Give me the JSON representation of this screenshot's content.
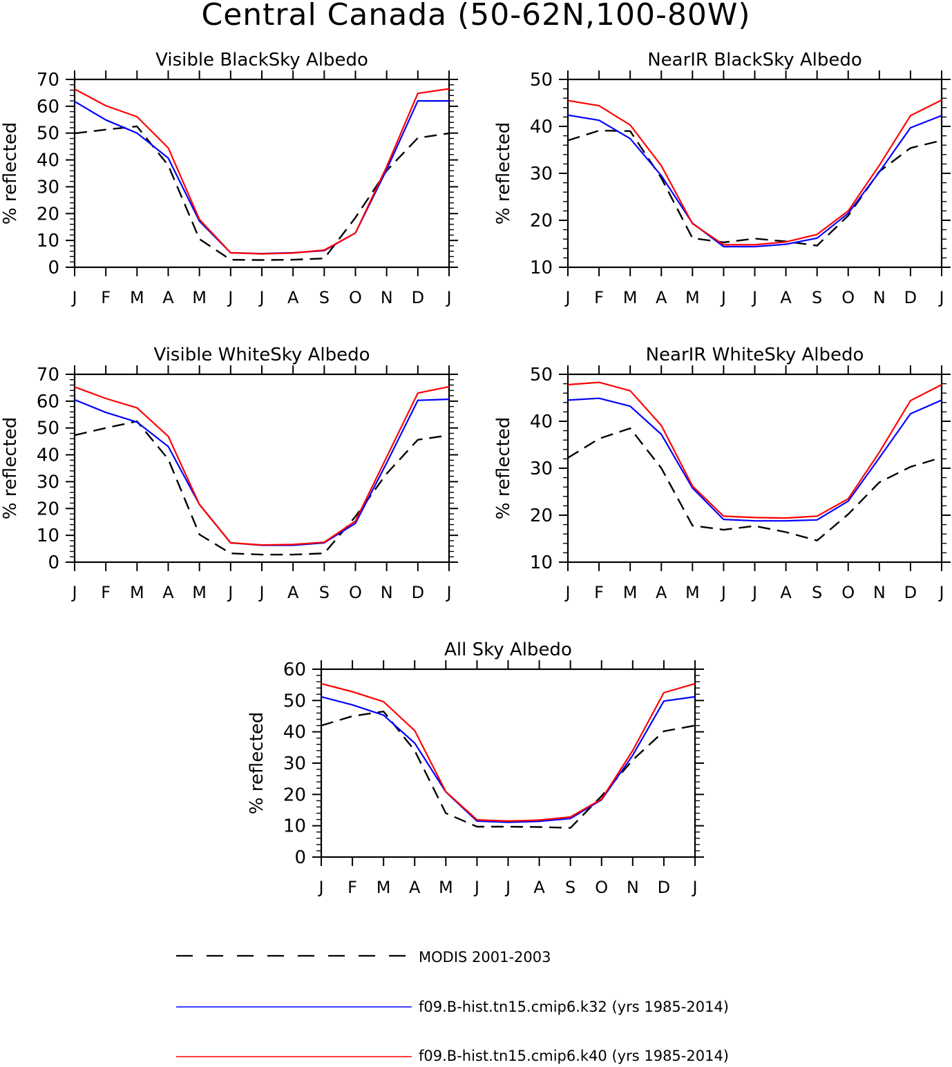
{
  "figure": {
    "title": "Central Canada (50-62N,100-80W)"
  },
  "chart_data": [
    {
      "type": "line",
      "title": "Visible BlackSky Albedo",
      "ylabel": "% reflected",
      "xlabel": "",
      "x": [
        "J",
        "F",
        "M",
        "A",
        "M",
        "J",
        "J",
        "A",
        "S",
        "O",
        "N",
        "D",
        "J"
      ],
      "ylim": [
        0,
        70
      ],
      "yticks": [
        0,
        10,
        20,
        30,
        40,
        50,
        60,
        70
      ],
      "series": [
        {
          "name": "MODIS 2001-2003",
          "color": "#000000",
          "dashed": true,
          "values": [
            49.9,
            51.3,
            52.5,
            38,
            10.5,
            2.8,
            2.7,
            2.8,
            3.3,
            18.5,
            36,
            48.2,
            49.9
          ]
        },
        {
          "name": "f09.B-hist.tn15.cmip6.k32 (yrs 1985-2014)",
          "color": "#0000ff",
          "dashed": false,
          "values": [
            61.8,
            54.9,
            50,
            40.7,
            17.2,
            5.4,
            5.1,
            5.4,
            6.2,
            12.8,
            36.4,
            62,
            62
          ]
        },
        {
          "name": "f09.B-hist.tn15.cmip6.k40 (yrs 1985-2014)",
          "color": "#ff0000",
          "dashed": false,
          "values": [
            66.4,
            60.2,
            56.1,
            44.5,
            17.8,
            5.4,
            5,
            5.3,
            6.4,
            12.8,
            37.5,
            64.8,
            66.5
          ]
        }
      ]
    },
    {
      "type": "line",
      "title": "NearIR BlackSky Albedo",
      "ylabel": "% reflected",
      "xlabel": "",
      "x": [
        "J",
        "F",
        "M",
        "A",
        "M",
        "J",
        "J",
        "A",
        "S",
        "O",
        "N",
        "D",
        "J"
      ],
      "ylim": [
        10,
        50
      ],
      "yticks": [
        10,
        20,
        30,
        40,
        50
      ],
      "series": [
        {
          "name": "MODIS 2001-2003",
          "color": "#000000",
          "dashed": true,
          "values": [
            37,
            39.1,
            39,
            29,
            16.2,
            15.3,
            16.1,
            15.5,
            14.6,
            21,
            30.4,
            35.4,
            37
          ]
        },
        {
          "name": "f09.B-hist.tn15.cmip6.k32 (yrs 1985-2014)",
          "color": "#0000ff",
          "dashed": false,
          "values": [
            42.4,
            41.3,
            37.4,
            29.5,
            19.4,
            14.4,
            14.4,
            14.9,
            16.2,
            21.5,
            30.3,
            39.7,
            42.3
          ]
        },
        {
          "name": "f09.B-hist.tn15.cmip6.k40 (yrs 1985-2014)",
          "color": "#ff0000",
          "dashed": false,
          "values": [
            45.5,
            44.4,
            40.3,
            31.6,
            19.3,
            14.8,
            14.8,
            15.4,
            17,
            22,
            31.7,
            42.3,
            45.6
          ]
        }
      ]
    },
    {
      "type": "line",
      "title": "Visible WhiteSky Albedo",
      "ylabel": "% reflected",
      "xlabel": "",
      "x": [
        "J",
        "F",
        "M",
        "A",
        "M",
        "J",
        "J",
        "A",
        "S",
        "O",
        "N",
        "D",
        "J"
      ],
      "ylim": [
        0,
        70
      ],
      "yticks": [
        0,
        10,
        20,
        30,
        40,
        50,
        60,
        70
      ],
      "series": [
        {
          "name": "MODIS 2001-2003",
          "color": "#000000",
          "dashed": true,
          "values": [
            47.3,
            50,
            52.5,
            38.4,
            10.3,
            3.3,
            2.8,
            2.8,
            3.3,
            17,
            33,
            45.6,
            47.3
          ]
        },
        {
          "name": "f09.B-hist.tn15.cmip6.k32 (yrs 1985-2014)",
          "color": "#0000ff",
          "dashed": false,
          "values": [
            60.5,
            55.8,
            52.2,
            43.1,
            21.5,
            7.2,
            6.3,
            6.3,
            7.2,
            14.5,
            37,
            60.3,
            60.7
          ]
        },
        {
          "name": "f09.B-hist.tn15.cmip6.k40 (yrs 1985-2014)",
          "color": "#ff0000",
          "dashed": false,
          "values": [
            65.3,
            61,
            57.5,
            46.9,
            21.5,
            7.2,
            6.4,
            6.6,
            7.4,
            15.3,
            39.2,
            63,
            65.4
          ]
        }
      ]
    },
    {
      "type": "line",
      "title": "NearIR WhiteSky Albedo",
      "ylabel": "% reflected",
      "xlabel": "",
      "x": [
        "J",
        "F",
        "M",
        "A",
        "M",
        "J",
        "J",
        "A",
        "S",
        "O",
        "N",
        "D",
        "J"
      ],
      "ylim": [
        10,
        50
      ],
      "yticks": [
        10,
        20,
        30,
        40,
        50
      ],
      "series": [
        {
          "name": "MODIS 2001-2003",
          "color": "#000000",
          "dashed": true,
          "values": [
            32.2,
            36.3,
            38.5,
            30,
            17.8,
            16.9,
            17.7,
            16.4,
            14.6,
            20.2,
            27,
            30.3,
            32.3
          ]
        },
        {
          "name": "f09.B-hist.tn15.cmip6.k32 (yrs 1985-2014)",
          "color": "#0000ff",
          "dashed": false,
          "values": [
            44.5,
            44.9,
            43.2,
            37.2,
            25.8,
            19.1,
            18.8,
            18.8,
            19,
            23,
            32.2,
            41.6,
            44.5
          ]
        },
        {
          "name": "f09.B-hist.tn15.cmip6.k40 (yrs 1985-2014)",
          "color": "#ff0000",
          "dashed": false,
          "values": [
            47.8,
            48.3,
            46.5,
            39.1,
            26.2,
            19.8,
            19.5,
            19.4,
            19.8,
            23.5,
            33.4,
            44.4,
            47.8
          ]
        }
      ]
    },
    {
      "type": "line",
      "title": "All Sky Albedo",
      "ylabel": "% reflected",
      "xlabel": "",
      "x": [
        "J",
        "F",
        "M",
        "A",
        "M",
        "J",
        "J",
        "A",
        "S",
        "O",
        "N",
        "D",
        "J"
      ],
      "ylim": [
        0,
        60
      ],
      "yticks": [
        0,
        10,
        20,
        30,
        40,
        50,
        60
      ],
      "series": [
        {
          "name": "MODIS 2001-2003",
          "color": "#000000",
          "dashed": true,
          "values": [
            42,
            45,
            46.5,
            34,
            14,
            9.7,
            9.7,
            9.6,
            9.3,
            19.5,
            31,
            40.2,
            42
          ]
        },
        {
          "name": "f09.B-hist.tn15.cmip6.k32 (yrs 1985-2014)",
          "color": "#0000ff",
          "dashed": false,
          "values": [
            51.2,
            48.6,
            45.3,
            36.4,
            20.8,
            11.5,
            11.1,
            11.4,
            12.3,
            18.3,
            32.5,
            49.8,
            51.2
          ]
        },
        {
          "name": "f09.B-hist.tn15.cmip6.k40 (yrs 1985-2014)",
          "color": "#ff0000",
          "dashed": false,
          "values": [
            55.4,
            52.8,
            49.6,
            40.4,
            20.9,
            11.9,
            11.5,
            11.8,
            12.8,
            18.5,
            34,
            52.5,
            55.4
          ]
        }
      ]
    }
  ],
  "legend": {
    "entries": [
      {
        "label": "MODIS 2001-2003",
        "color": "#000000",
        "dashed": true
      },
      {
        "label": "f09.B-hist.tn15.cmip6.k32 (yrs 1985-2014)",
        "color": "#0000ff",
        "dashed": false
      },
      {
        "label": "f09.B-hist.tn15.cmip6.k40 (yrs 1985-2014)",
        "color": "#ff0000",
        "dashed": false
      }
    ]
  }
}
